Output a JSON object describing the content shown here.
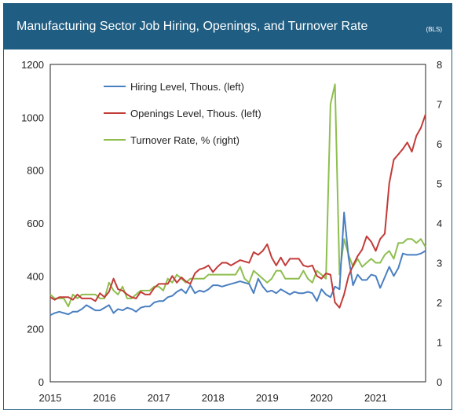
{
  "header": {
    "title": "Manufacturing Sector Job Hiring, Openings, and Turnover Rate",
    "source": "(BLS)"
  },
  "colors": {
    "title_bar": "#1f5d82",
    "hiring": "#4a7fc1",
    "openings": "#c23b38",
    "turnover": "#8fbe4f"
  },
  "chart_data": {
    "type": "line",
    "x_unit": "year",
    "xlim": [
      2015,
      2021.92
    ],
    "x_ticks": [
      "2015",
      "2016",
      "2017",
      "2018",
      "2019",
      "2020",
      "2021"
    ],
    "left_axis": {
      "ylim": [
        0,
        1200
      ],
      "ticks": [
        "0",
        "200",
        "400",
        "600",
        "800",
        "1000",
        "1200"
      ]
    },
    "right_axis": {
      "ylim": [
        0,
        8
      ],
      "ticks": [
        "0",
        "1",
        "2",
        "3",
        "4",
        "5",
        "6",
        "7",
        "8"
      ]
    },
    "grid": false,
    "legend_position": "upper-left",
    "series": [
      {
        "name": "Hiring Level, Thous. (left)",
        "axis": "left",
        "color": "#4a7fc1",
        "x": [
          2015.0,
          2015.083,
          2015.167,
          2015.25,
          2015.333,
          2015.417,
          2015.5,
          2015.583,
          2015.667,
          2015.75,
          2015.833,
          2015.917,
          2016.0,
          2016.083,
          2016.167,
          2016.25,
          2016.333,
          2016.417,
          2016.5,
          2016.583,
          2016.667,
          2016.75,
          2016.833,
          2016.917,
          2017.0,
          2017.083,
          2017.167,
          2017.25,
          2017.333,
          2017.417,
          2017.5,
          2017.583,
          2017.667,
          2017.75,
          2017.833,
          2017.917,
          2018.0,
          2018.083,
          2018.167,
          2018.25,
          2018.333,
          2018.417,
          2018.5,
          2018.583,
          2018.667,
          2018.75,
          2018.833,
          2018.917,
          2019.0,
          2019.083,
          2019.167,
          2019.25,
          2019.333,
          2019.417,
          2019.5,
          2019.583,
          2019.667,
          2019.75,
          2019.833,
          2019.917,
          2020.0,
          2020.083,
          2020.167,
          2020.25,
          2020.333,
          2020.417,
          2020.5,
          2020.583,
          2020.667,
          2020.75,
          2020.833,
          2020.917,
          2021.0,
          2021.083,
          2021.167,
          2021.25,
          2021.333,
          2021.417,
          2021.5,
          2021.583,
          2021.667,
          2021.75,
          2021.833,
          2021.917
        ],
        "values": [
          252,
          260,
          265,
          260,
          255,
          265,
          265,
          275,
          290,
          280,
          270,
          270,
          280,
          290,
          260,
          275,
          270,
          280,
          275,
          265,
          280,
          285,
          285,
          300,
          305,
          305,
          320,
          325,
          340,
          350,
          335,
          365,
          335,
          345,
          340,
          350,
          365,
          365,
          360,
          365,
          370,
          375,
          380,
          375,
          370,
          335,
          390,
          360,
          340,
          345,
          335,
          350,
          340,
          330,
          340,
          335,
          335,
          340,
          335,
          305,
          350,
          330,
          320,
          360,
          350,
          640,
          470,
          365,
          405,
          385,
          385,
          405,
          400,
          355,
          395,
          435,
          400,
          430,
          485,
          480,
          480,
          480,
          485,
          495
        ]
      },
      {
        "name": "Openings Level, Thous. (left)",
        "axis": "left",
        "color": "#c23b38",
        "x": [
          2015.0,
          2015.083,
          2015.167,
          2015.25,
          2015.333,
          2015.417,
          2015.5,
          2015.583,
          2015.667,
          2015.75,
          2015.833,
          2015.917,
          2016.0,
          2016.083,
          2016.167,
          2016.25,
          2016.333,
          2016.417,
          2016.5,
          2016.583,
          2016.667,
          2016.75,
          2016.833,
          2016.917,
          2017.0,
          2017.083,
          2017.167,
          2017.25,
          2017.333,
          2017.417,
          2017.5,
          2017.583,
          2017.667,
          2017.75,
          2017.833,
          2017.917,
          2018.0,
          2018.083,
          2018.167,
          2018.25,
          2018.333,
          2018.417,
          2018.5,
          2018.583,
          2018.667,
          2018.75,
          2018.833,
          2018.917,
          2019.0,
          2019.083,
          2019.167,
          2019.25,
          2019.333,
          2019.417,
          2019.5,
          2019.583,
          2019.667,
          2019.75,
          2019.833,
          2019.917,
          2020.0,
          2020.083,
          2020.167,
          2020.25,
          2020.333,
          2020.417,
          2020.5,
          2020.583,
          2020.667,
          2020.75,
          2020.833,
          2020.917,
          2021.0,
          2021.083,
          2021.167,
          2021.25,
          2021.333,
          2021.417,
          2021.5,
          2021.583,
          2021.667,
          2021.75,
          2021.833,
          2021.917
        ],
        "values": [
          320,
          310,
          320,
          320,
          320,
          310,
          330,
          315,
          315,
          315,
          305,
          335,
          320,
          340,
          390,
          350,
          345,
          330,
          320,
          315,
          340,
          330,
          330,
          355,
          370,
          370,
          370,
          400,
          375,
          395,
          380,
          370,
          410,
          425,
          430,
          440,
          415,
          435,
          450,
          450,
          440,
          450,
          460,
          455,
          450,
          490,
          480,
          495,
          520,
          470,
          440,
          470,
          440,
          465,
          465,
          465,
          440,
          435,
          440,
          400,
          390,
          410,
          405,
          300,
          280,
          330,
          400,
          440,
          475,
          500,
          550,
          530,
          495,
          540,
          560,
          750,
          840,
          860,
          880,
          905,
          870,
          930,
          960,
          1010
        ]
      },
      {
        "name": "Turnover Rate, % (right)",
        "axis": "right",
        "color": "#8fbe4f",
        "x": [
          2015.0,
          2015.083,
          2015.167,
          2015.25,
          2015.333,
          2015.417,
          2015.5,
          2015.583,
          2015.667,
          2015.75,
          2015.833,
          2015.917,
          2016.0,
          2016.083,
          2016.167,
          2016.25,
          2016.333,
          2016.417,
          2016.5,
          2016.583,
          2016.667,
          2016.75,
          2016.833,
          2016.917,
          2017.0,
          2017.083,
          2017.167,
          2017.25,
          2017.333,
          2017.417,
          2017.5,
          2017.583,
          2017.667,
          2017.75,
          2017.833,
          2017.917,
          2018.0,
          2018.083,
          2018.167,
          2018.25,
          2018.333,
          2018.417,
          2018.5,
          2018.583,
          2018.667,
          2018.75,
          2018.833,
          2018.917,
          2019.0,
          2019.083,
          2019.167,
          2019.25,
          2019.333,
          2019.417,
          2019.5,
          2019.583,
          2019.667,
          2019.75,
          2019.833,
          2019.917,
          2020.0,
          2020.083,
          2020.167,
          2020.25,
          2020.333,
          2020.417,
          2020.5,
          2020.583,
          2020.667,
          2020.75,
          2020.833,
          2020.917,
          2021.0,
          2021.083,
          2021.167,
          2021.25,
          2021.333,
          2021.417,
          2021.5,
          2021.583,
          2021.667,
          2021.75,
          2021.833,
          2021.917
        ],
        "values": [
          2.2,
          2.1,
          2.1,
          2.1,
          1.9,
          2.2,
          2.1,
          2.2,
          2.2,
          2.2,
          2.2,
          2.1,
          2.1,
          2.5,
          2.3,
          2.2,
          2.4,
          2.1,
          2.1,
          2.2,
          2.3,
          2.3,
          2.3,
          2.4,
          2.4,
          2.3,
          2.6,
          2.5,
          2.7,
          2.6,
          2.5,
          2.6,
          2.6,
          2.6,
          2.6,
          2.7,
          2.7,
          2.7,
          2.7,
          2.7,
          2.7,
          2.7,
          2.9,
          2.6,
          2.5,
          2.8,
          2.7,
          2.6,
          2.5,
          2.6,
          2.8,
          2.8,
          2.6,
          2.6,
          2.6,
          2.6,
          2.8,
          2.6,
          2.5,
          2.8,
          2.7,
          2.6,
          7.0,
          7.5,
          2.7,
          3.6,
          3.2,
          2.9,
          3.1,
          2.9,
          3.0,
          3.1,
          3.0,
          3.0,
          3.2,
          3.3,
          3.1,
          3.5,
          3.5,
          3.6,
          3.6,
          3.5,
          3.6,
          3.4
        ]
      }
    ]
  }
}
